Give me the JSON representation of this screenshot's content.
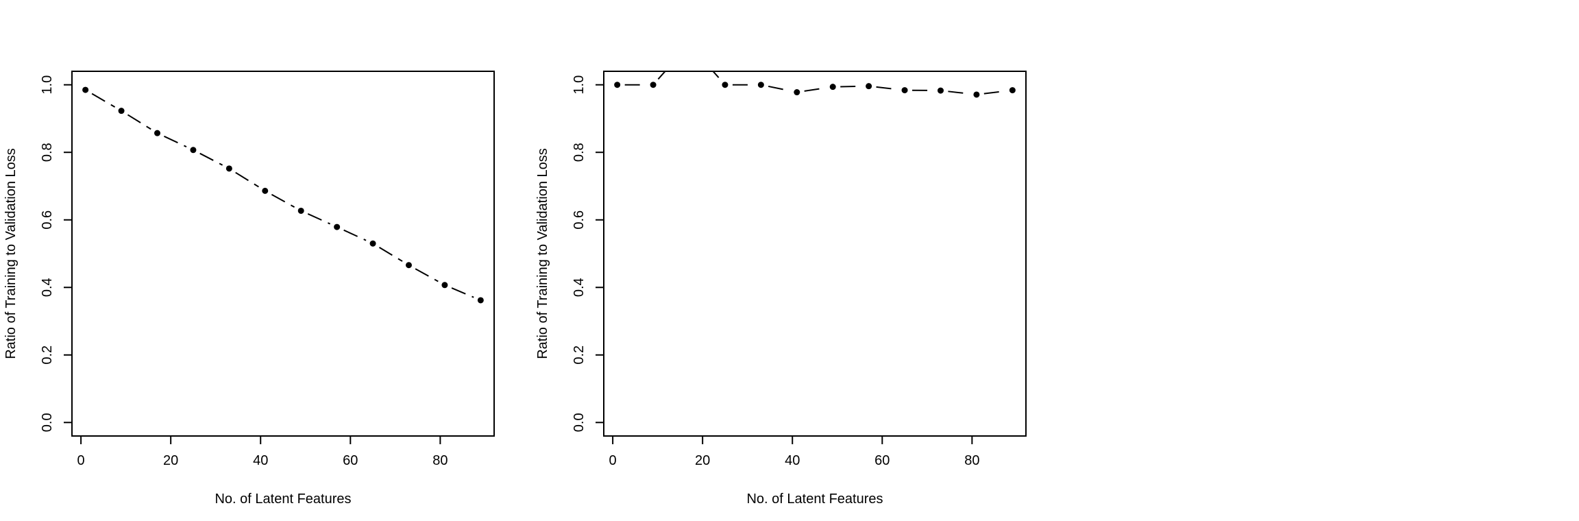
{
  "chart_data": [
    {
      "type": "line",
      "xlabel": "No. of Latent Features",
      "ylabel": "Ratio of Training to Validation Loss",
      "xlim": [
        -2,
        92
      ],
      "ylim": [
        -0.04,
        1.04
      ],
      "xticks": [
        0,
        20,
        40,
        60,
        80
      ],
      "xtick_labels": [
        "0",
        "20",
        "40",
        "60",
        "80"
      ],
      "yticks": [
        0.0,
        0.2,
        0.4,
        0.6,
        0.8,
        1.0
      ],
      "ytick_labels": [
        "0.0",
        "0.2",
        "0.4",
        "0.6",
        "0.8",
        "1.0"
      ],
      "line_style": "dashed",
      "marker": "filled-circle",
      "series": [
        {
          "x": [
            1,
            9,
            17,
            25,
            33,
            41,
            49,
            57,
            65,
            73,
            81,
            89
          ],
          "values": [
            0.985,
            0.923,
            0.857,
            0.807,
            0.752,
            0.686,
            0.627,
            0.579,
            0.53,
            0.466,
            0.407,
            0.362
          ]
        }
      ]
    },
    {
      "type": "line",
      "xlabel": "No. of Latent Features",
      "ylabel": "Ratio of Training to Validation Loss",
      "xlim": [
        -2,
        92
      ],
      "ylim": [
        -0.04,
        1.04
      ],
      "xticks": [
        0,
        20,
        40,
        60,
        80
      ],
      "xtick_labels": [
        "0",
        "20",
        "40",
        "60",
        "80"
      ],
      "yticks": [
        0.0,
        0.2,
        0.4,
        0.6,
        0.8,
        1.0
      ],
      "ytick_labels": [
        "0.0",
        "0.2",
        "0.4",
        "0.6",
        "0.8",
        "1.0"
      ],
      "line_style": "dashed",
      "marker": "filled-circle",
      "series": [
        {
          "x": [
            1,
            9,
            17,
            25,
            33,
            41,
            49,
            57,
            65,
            73,
            81,
            89
          ],
          "values": [
            1.0,
            1.0,
            1.12,
            1.0,
            1.0,
            0.978,
            0.994,
            0.996,
            0.984,
            0.983,
            0.971,
            0.984
          ]
        }
      ]
    }
  ]
}
